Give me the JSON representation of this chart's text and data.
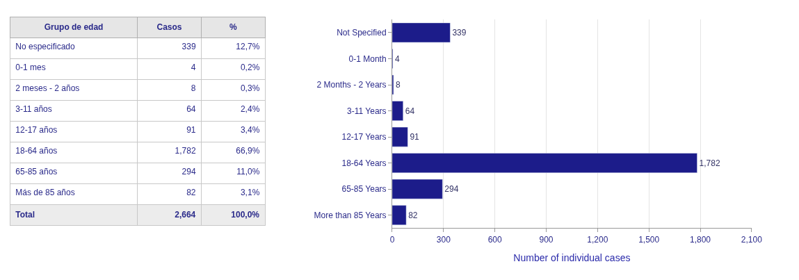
{
  "chart_data": [
    {
      "type": "other",
      "ylabel": "Grupo de edad",
      "categories": [
        "No especificado",
        "0-1 mes",
        "2 meses - 2 años",
        "3-11 años",
        "12-17 años",
        "18-64 años",
        "65-85 años",
        "Más de 85 años",
        "Total"
      ],
      "series": [
        {
          "name": "Casos",
          "colors": [
            "#ffffff",
            "#ffffff",
            "#ffffff",
            "#ffffff",
            "#ffffff",
            "#ffffff",
            "#ffffff",
            "#ffffff",
            "#ececec"
          ],
          "values": [
            339,
            4,
            8,
            64,
            91,
            1782,
            294,
            82,
            2664
          ],
          "value_labels": [
            "339",
            "4",
            "8",
            "64",
            "91",
            "1,782",
            "294",
            "82",
            "2,664"
          ]
        },
        {
          "name": "%",
          "colors": [
            "#ffffff",
            "#ffffff",
            "#ffffff",
            "#ffffff",
            "#ffffff",
            "#ffffff",
            "#ffffff",
            "#ffffff",
            "#ececec"
          ],
          "values": [
            12.7,
            0.2,
            0.3,
            2.4,
            3.4,
            66.9,
            11.0,
            3.1,
            100.0
          ],
          "value_labels": [
            "12,7%",
            "0,2%",
            "0,3%",
            "2,4%",
            "3,4%",
            "66,9%",
            "11,0%",
            "3,1%",
            "100,0%"
          ]
        }
      ]
    },
    {
      "type": "bar",
      "orientation": "horizontal",
      "categories": [
        "Not Specified",
        "0-1 Month",
        "2 Months - 2 Years",
        "3-11 Years",
        "12-17 Years",
        "18-64 Years",
        "65-85 Years",
        "More than 85 Years"
      ],
      "values": [
        339,
        4,
        8,
        64,
        91,
        1782,
        294,
        82
      ],
      "color": "#1c1c8a",
      "value_labels": [
        "339",
        "4",
        "8",
        "64",
        "91",
        "1,782",
        "294",
        "82"
      ],
      "xlabel": "Number of individual cases",
      "xlim": [
        0,
        2100
      ],
      "xticks": [
        0,
        300,
        600,
        900,
        {
          "value": 1200,
          "label": "1,200"
        },
        {
          "value": 1500,
          "label": "1,500"
        },
        {
          "value": 1800,
          "label": "1,800"
        },
        {
          "value": 2100,
          "label": "2,100"
        }
      ],
      "grid": "x"
    }
  ]
}
